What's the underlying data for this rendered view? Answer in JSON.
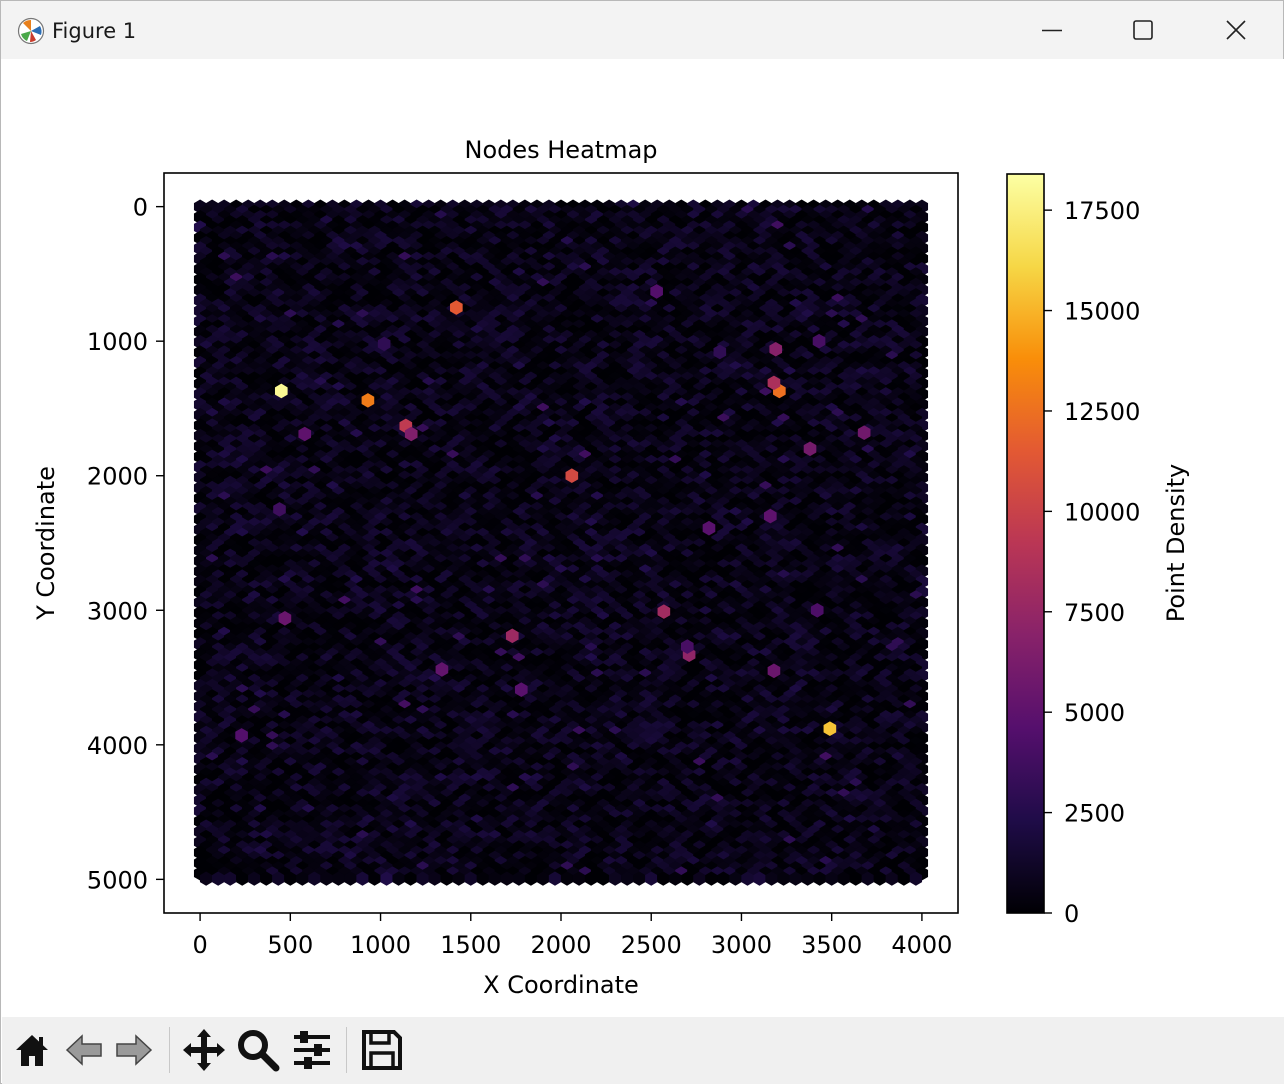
{
  "window": {
    "title": "Figure 1",
    "controls": {
      "minimize": "minimize-icon",
      "maximize": "maximize-icon",
      "close": "close-icon"
    }
  },
  "toolbar": {
    "buttons": [
      {
        "name": "home",
        "icon": "home-icon"
      },
      {
        "name": "back",
        "icon": "back-arrow-icon"
      },
      {
        "name": "forward",
        "icon": "forward-arrow-icon"
      },
      {
        "name": "pan",
        "icon": "move-icon"
      },
      {
        "name": "zoom",
        "icon": "magnifier-icon"
      },
      {
        "name": "configure-subplots",
        "icon": "sliders-icon"
      },
      {
        "name": "save",
        "icon": "floppy-disk-icon"
      }
    ]
  },
  "chart_data": {
    "type": "heatmap",
    "subtype": "hexbin",
    "title": "Nodes Heatmap",
    "xlabel": "X Coordinate",
    "ylabel": "Y Coordinate",
    "xlim": [
      -200,
      4200
    ],
    "ylim": [
      5250,
      -250
    ],
    "y_inverted": true,
    "x_ticks": [
      0,
      500,
      1000,
      1500,
      2000,
      2500,
      3000,
      3500,
      4000
    ],
    "y_ticks": [
      0,
      1000,
      2000,
      3000,
      4000,
      5000
    ],
    "colorbar": {
      "label": "Point Density",
      "colormap": "inferno",
      "range": [
        0,
        18400
      ],
      "ticks": [
        0,
        2500,
        5000,
        7500,
        10000,
        12500,
        15000,
        17500
      ]
    },
    "grid": false,
    "background_density": "approximately 0–2500 across the full 0–4000 × 0–5000 area",
    "hotspots": [
      {
        "x": 450,
        "y": 1370,
        "density": 18000
      },
      {
        "x": 3490,
        "y": 3880,
        "density": 15500
      },
      {
        "x": 930,
        "y": 1440,
        "density": 13000
      },
      {
        "x": 3210,
        "y": 1370,
        "density": 12500
      },
      {
        "x": 1420,
        "y": 750,
        "density": 11500
      },
      {
        "x": 2060,
        "y": 2000,
        "density": 10500
      },
      {
        "x": 1140,
        "y": 1630,
        "density": 9500
      },
      {
        "x": 3180,
        "y": 1310,
        "density": 8500
      },
      {
        "x": 2570,
        "y": 3010,
        "density": 8000
      },
      {
        "x": 1730,
        "y": 3190,
        "density": 7800
      },
      {
        "x": 2710,
        "y": 3330,
        "density": 7200
      },
      {
        "x": 3190,
        "y": 1060,
        "density": 6800
      },
      {
        "x": 1170,
        "y": 1690,
        "density": 6500
      },
      {
        "x": 3380,
        "y": 1800,
        "density": 6000
      },
      {
        "x": 3680,
        "y": 1680,
        "density": 5800
      },
      {
        "x": 470,
        "y": 3060,
        "density": 5500
      },
      {
        "x": 3180,
        "y": 3450,
        "density": 5500
      },
      {
        "x": 1340,
        "y": 3440,
        "density": 5200
      },
      {
        "x": 3160,
        "y": 2300,
        "density": 5000
      },
      {
        "x": 580,
        "y": 1690,
        "density": 5000
      },
      {
        "x": 2820,
        "y": 2390,
        "density": 4800
      },
      {
        "x": 1780,
        "y": 3590,
        "density": 4800
      },
      {
        "x": 230,
        "y": 3930,
        "density": 4500
      },
      {
        "x": 2530,
        "y": 630,
        "density": 4500
      },
      {
        "x": 3420,
        "y": 3000,
        "density": 4200
      },
      {
        "x": 3430,
        "y": 1000,
        "density": 4000
      },
      {
        "x": 2700,
        "y": 3270,
        "density": 4000
      },
      {
        "x": 440,
        "y": 2250,
        "density": 3600
      },
      {
        "x": 1020,
        "y": 1020,
        "density": 3000
      },
      {
        "x": 2880,
        "y": 1080,
        "density": 3000
      }
    ]
  }
}
